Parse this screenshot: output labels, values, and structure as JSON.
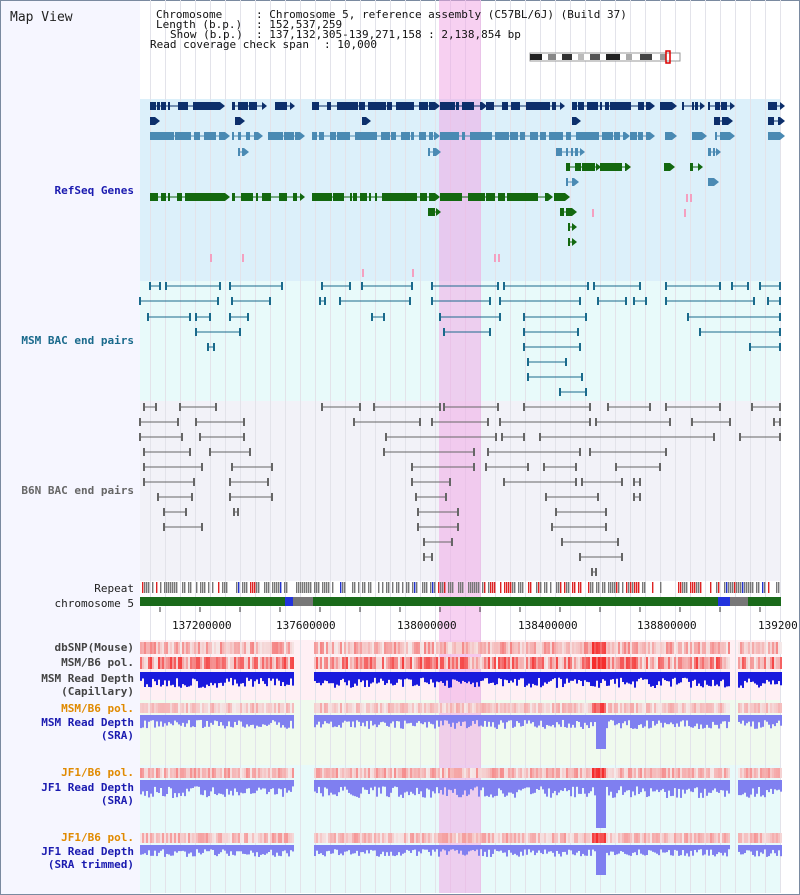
{
  "view": {
    "title": "Map View",
    "chromosome_key": "Chromosome",
    "chromosome_val": ": Chromosome 5, reference assembly (C57BL/6J) (Build 37)",
    "length_key": "Length (b.p.)",
    "length_val": ": 152,537,259",
    "show_key": "Show (b.p.)",
    "show_val": ": 137,132,305-139,271,158 : 2,138,854 bp",
    "coverage_key": "Read coverage check span",
    "coverage_val": ": 10,000"
  },
  "tracks": {
    "refseq": "RefSeq Genes",
    "msm_bac": "MSM BAC end pairs",
    "b6n_bac": "B6N BAC end pairs",
    "repeat": "Repeat",
    "chromosome": "chromosome 5",
    "dbsnp": "dbSNP(Mouse)",
    "msm_b6_pol": "MSM/B6 pol.",
    "msm_depth_cap_1": "MSM Read Depth",
    "msm_depth_cap_2": "(Capillary)",
    "msm_b6_pol_2": "MSM/B6 pol.",
    "msm_depth_sra_1": "MSM Read Depth",
    "msm_depth_sra_2": "(SRA)",
    "jf1_b6_pol": "JF1/B6 pol.",
    "jf1_depth_sra_1": "JF1 Read Depth",
    "jf1_depth_sra_2": "(SRA)",
    "jf1_b6_pol_2": "JF1/B6 pol.",
    "jf1_depth_trim_1": "JF1 Read Depth",
    "jf1_depth_trim_2": "(SRA trimmed)"
  },
  "axis": {
    "ticks": [
      "137200000",
      "137600000",
      "138000000",
      "138400000",
      "138800000",
      "139200"
    ],
    "range_start": 137132305,
    "range_end": 139271158
  },
  "colors": {
    "refseq_dark": "#0d2f6b",
    "refseq_mid": "#4a8ab3",
    "refseq_green": "#13680f",
    "msm_bac": "#1a6a8c",
    "b6n_bac": "#666666",
    "highlight": "#f3c2ef",
    "polymorphism": "#e8483a",
    "depth_capillary": "#1a1add",
    "depth_sra": "#7f7ff0"
  }
}
